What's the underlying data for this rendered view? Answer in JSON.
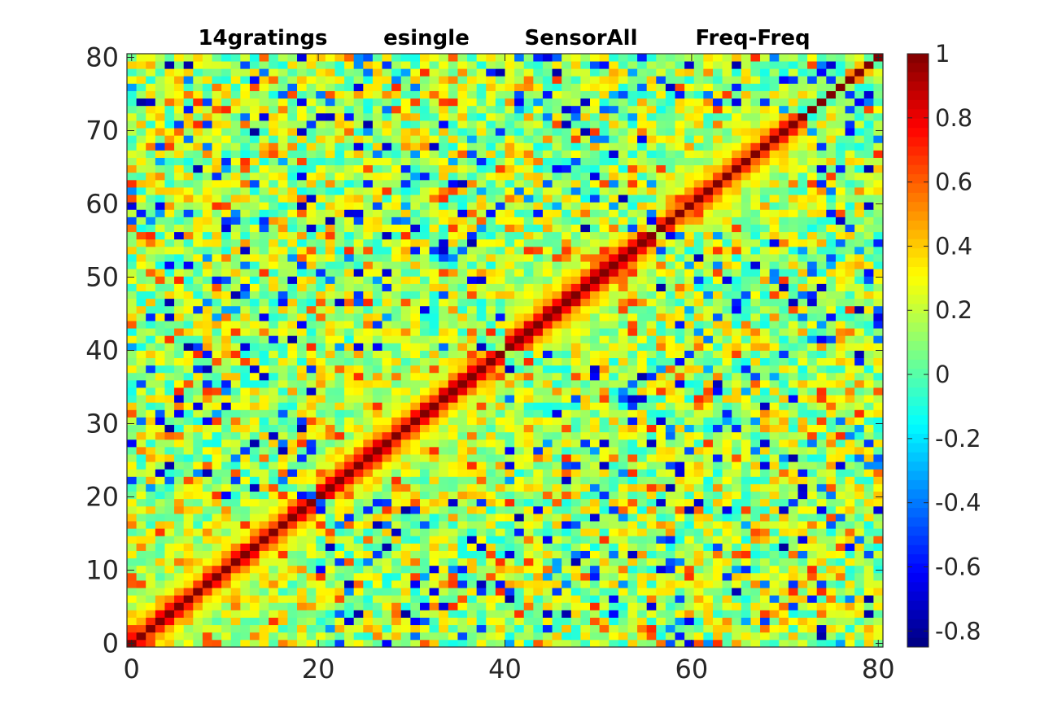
{
  "chart_data": {
    "type": "heatmap",
    "title_segments": [
      "14gratings",
      "esingle",
      "SensorAll",
      "Freq-Freq"
    ],
    "xlabel": "",
    "ylabel": "",
    "n": 80,
    "xlim": [
      -0.5,
      80.5
    ],
    "ylim": [
      -0.5,
      80.5
    ],
    "x_ticks": [
      0,
      20,
      40,
      60,
      80
    ],
    "y_ticks": [
      0,
      10,
      20,
      30,
      40,
      50,
      60,
      70,
      80
    ],
    "colormap": "jet",
    "clim": [
      -0.85,
      1
    ],
    "colorbar_ticks": [
      1,
      0.8,
      0.6,
      0.4,
      0.2,
      0,
      -0.2,
      -0.4,
      -0.6,
      -0.8
    ],
    "colorbar_tick_labels": [
      "1",
      "0.8",
      "0.6",
      "0.4",
      "0.2",
      "0",
      "-0.2",
      "-0.4",
      "-0.6",
      "-0.8"
    ],
    "diagonal_value": 1,
    "blocks": [
      {
        "range": [
          0,
          20
        ],
        "near_diagonal": 0.7
      },
      {
        "range": [
          20,
          40
        ],
        "near_diagonal": 0.75
      },
      {
        "range": [
          40,
          56
        ],
        "near_diagonal": 0.8
      },
      {
        "range": [
          56,
          72
        ],
        "near_diagonal": 0.65
      }
    ],
    "off_diagonal_range": [
      -0.8,
      0.7
    ],
    "random_seed": 12345
  }
}
